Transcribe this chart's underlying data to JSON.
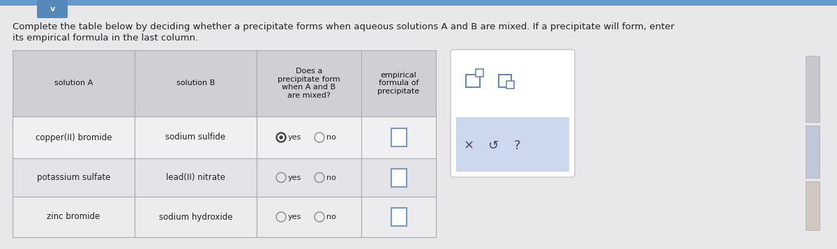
{
  "title_line1": "Complete the table below by deciding whether a precipitate forms when aqueous solutions A and B are mixed. If a precipitate will form, enter",
  "title_line2": "its empirical formula in the last column.",
  "bg_color": "#e8e8ea",
  "top_bar_color": "#6699cc",
  "chevron_bg": "#5588bb",
  "header_bg": "#d0d0d4",
  "row_bg1": "#f0f0f2",
  "row_bg2": "#e4e4e8",
  "row_bg3": "#ececee",
  "table_border": "#aaaaaa",
  "col_headers": [
    "solution A",
    "solution B",
    "Does a\nprecipitate form\nwhen A and B\nare mixed?",
    "empirical\nformula of\nprecipitate"
  ],
  "rows": [
    [
      "copper(II) bromide",
      "sodium sulfide",
      "yes_filled"
    ],
    [
      "potassium sulfate",
      "lead(II) nitrate",
      "yes_empty"
    ],
    [
      "zinc bromide",
      "sodium hydroxide",
      "yes_empty"
    ]
  ],
  "panel_bg": "#ffffff",
  "panel_border": "#cccccc",
  "panel_blue_bg": "#ccd8ee",
  "icon_color": "#6688bb",
  "right_tabs": [
    "#c8c8cc",
    "#c0c8d8",
    "#d0c8c0"
  ]
}
